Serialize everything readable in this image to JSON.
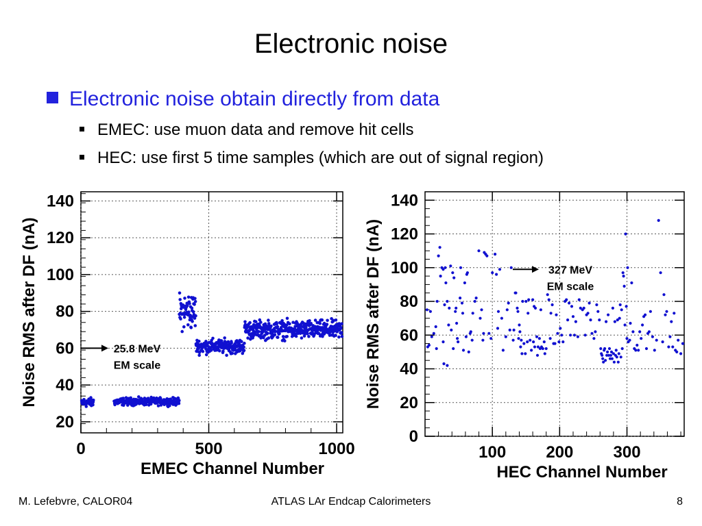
{
  "slide": {
    "title": "Electronic noise",
    "bullet_main": "Electronic noise obtain directly from data",
    "sub_bullets": [
      "EMEC: use muon data and remove hit cells",
      "HEC: use first 5 time samples (which are out of signal region)"
    ]
  },
  "footer": {
    "left": "M. Lefebvre, CALOR04",
    "center": "ATLAS LAr Endcap Calorimeters",
    "page": "8"
  },
  "colors": {
    "accent": "#2222dd",
    "marker": "#1010d0"
  },
  "chart_data": [
    {
      "type": "scatter",
      "xlabel": "EMEC Channel Number",
      "ylabel": "Noise RMS after DF (nA)",
      "xlim": [
        0,
        1024
      ],
      "ylim": [
        14,
        145
      ],
      "xticks": [
        0,
        500,
        1000
      ],
      "yticks": [
        20,
        40,
        60,
        80,
        100,
        120,
        140
      ],
      "grid": true,
      "annotation": {
        "line1": "25.8 MeV",
        "line2": "EM scale",
        "at_y": 60
      },
      "series": [
        {
          "x_range": [
            0,
            50
          ],
          "y_mean": 30.5,
          "y_spread": 2.2
        },
        {
          "x_range": [
            130,
            385
          ],
          "y_mean": 31,
          "y_spread": 1.8
        },
        {
          "x_range": [
            385,
            450
          ],
          "y_mean": 80,
          "y_spread": 9
        },
        {
          "x_range": [
            450,
            640
          ],
          "y_mean": 61,
          "y_spread": 3.5
        },
        {
          "x_range": [
            640,
            1024
          ],
          "y_mean": 70,
          "y_spread": 4.5
        }
      ]
    },
    {
      "type": "scatter",
      "xlabel": "HEC Channel Number",
      "ylabel": "Noise RMS after DF (nA)",
      "xlim": [
        0,
        385
      ],
      "ylim": [
        0,
        145
      ],
      "xticks": [
        100,
        200,
        300
      ],
      "yticks": [
        0,
        20,
        40,
        60,
        80,
        100,
        120,
        140
      ],
      "grid": true,
      "annotation": {
        "line1": "327 MeV",
        "line2": "EM scale",
        "at_y": 99
      },
      "points": [
        [
          3,
          75
        ],
        [
          4,
          53
        ],
        [
          6,
          54
        ],
        [
          8,
          74
        ],
        [
          10,
          59
        ],
        [
          13,
          61
        ],
        [
          16,
          65
        ],
        [
          17,
          52
        ],
        [
          18,
          80
        ],
        [
          20,
          107
        ],
        [
          22,
          112
        ],
        [
          23,
          95
        ],
        [
          25,
          100
        ],
        [
          27,
          99
        ],
        [
          27,
          56
        ],
        [
          28,
          43
        ],
        [
          29,
          78
        ],
        [
          30,
          100
        ],
        [
          31,
          91
        ],
        [
          33,
          80
        ],
        [
          33,
          42
        ],
        [
          35,
          66
        ],
        [
          36,
          76
        ],
        [
          38,
          101
        ],
        [
          39,
          63
        ],
        [
          41,
          97
        ],
        [
          42,
          52
        ],
        [
          43,
          94
        ],
        [
          45,
          74
        ],
        [
          46,
          76
        ],
        [
          47,
          67
        ],
        [
          48,
          58
        ],
        [
          49,
          56
        ],
        [
          52,
          82
        ],
        [
          53,
          100
        ],
        [
          55,
          79
        ],
        [
          56,
          73
        ],
        [
          57,
          51
        ],
        [
          59,
          91
        ],
        [
          61,
          59
        ],
        [
          62,
          96
        ],
        [
          63,
          97
        ],
        [
          65,
          50
        ],
        [
          67,
          61
        ],
        [
          68,
          62
        ],
        [
          70,
          57
        ],
        [
          71,
          73
        ],
        [
          74,
          80
        ],
        [
          76,
          82
        ],
        [
          80,
          110
        ],
        [
          82,
          70
        ],
        [
          84,
          75
        ],
        [
          86,
          57
        ],
        [
          87,
          61
        ],
        [
          88,
          109
        ],
        [
          90,
          108
        ],
        [
          92,
          107
        ],
        [
          95,
          61
        ],
        [
          98,
          58
        ],
        [
          100,
          97
        ],
        [
          104,
          108
        ],
        [
          106,
          96
        ],
        [
          108,
          64
        ],
        [
          109,
          74
        ],
        [
          111,
          99
        ],
        [
          114,
          70
        ],
        [
          116,
          51
        ],
        [
          120,
          59
        ],
        [
          122,
          75
        ],
        [
          124,
          79
        ],
        [
          126,
          63
        ],
        [
          128,
          100
        ],
        [
          131,
          57
        ],
        [
          132,
          63
        ],
        [
          134,
          85
        ],
        [
          135,
          85
        ],
        [
          137,
          76
        ],
        [
          138,
          74
        ],
        [
          139,
          58
        ],
        [
          140,
          66
        ],
        [
          141,
          62
        ],
        [
          142,
          53
        ],
        [
          143,
          57
        ],
        [
          144,
          49
        ],
        [
          145,
          80
        ],
        [
          147,
          55
        ],
        [
          149,
          49
        ],
        [
          150,
          80
        ],
        [
          152,
          56
        ],
        [
          153,
          73
        ],
        [
          154,
          81
        ],
        [
          156,
          57
        ],
        [
          158,
          51
        ],
        [
          160,
          81
        ],
        [
          161,
          56
        ],
        [
          162,
          77
        ],
        [
          163,
          53
        ],
        [
          164,
          76
        ],
        [
          166,
          59
        ],
        [
          167,
          48
        ],
        [
          168,
          53
        ],
        [
          170,
          58
        ],
        [
          171,
          52
        ],
        [
          172,
          75
        ],
        [
          173,
          53
        ],
        [
          175,
          52
        ],
        [
          177,
          56
        ],
        [
          178,
          49
        ],
        [
          180,
          52
        ],
        [
          182,
          84
        ],
        [
          184,
          81
        ],
        [
          186,
          58
        ],
        [
          187,
          73
        ],
        [
          189,
          78
        ],
        [
          191,
          55
        ],
        [
          193,
          55
        ],
        [
          195,
          72
        ],
        [
          197,
          61
        ],
        [
          199,
          56
        ],
        [
          201,
          64
        ],
        [
          203,
          60
        ],
        [
          205,
          56
        ],
        [
          208,
          80
        ],
        [
          210,
          81
        ],
        [
          212,
          69
        ],
        [
          214,
          79
        ],
        [
          216,
          60
        ],
        [
          218,
          77
        ],
        [
          220,
          71
        ],
        [
          222,
          60
        ],
        [
          224,
          68
        ],
        [
          227,
          59
        ],
        [
          229,
          81
        ],
        [
          231,
          76
        ],
        [
          234,
          75
        ],
        [
          236,
          76
        ],
        [
          238,
          60
        ],
        [
          240,
          72
        ],
        [
          242,
          73
        ],
        [
          244,
          79
        ],
        [
          246,
          69
        ],
        [
          248,
          61
        ],
        [
          251,
          58
        ],
        [
          253,
          62
        ],
        [
          255,
          78
        ],
        [
          257,
          74
        ],
        [
          259,
          69
        ],
        [
          261,
          52
        ],
        [
          262,
          49
        ],
        [
          263,
          48
        ],
        [
          264,
          46
        ],
        [
          265,
          44
        ],
        [
          266,
          51
        ],
        [
          267,
          52
        ],
        [
          268,
          45
        ],
        [
          269,
          68
        ],
        [
          270,
          48
        ],
        [
          271,
          50
        ],
        [
          272,
          72
        ],
        [
          273,
          48
        ],
        [
          274,
          52
        ],
        [
          275,
          46
        ],
        [
          276,
          48
        ],
        [
          277,
          50
        ],
        [
          278,
          46
        ],
        [
          279,
          76
        ],
        [
          280,
          49
        ],
        [
          281,
          44
        ],
        [
          282,
          68
        ],
        [
          283,
          48
        ],
        [
          284,
          51
        ],
        [
          285,
          47
        ],
        [
          286,
          69
        ],
        [
          287,
          44
        ],
        [
          288,
          49
        ],
        [
          289,
          70
        ],
        [
          290,
          78
        ],
        [
          291,
          47
        ],
        [
          292,
          75
        ],
        [
          293,
          52
        ],
        [
          294,
          97
        ],
        [
          295,
          95
        ],
        [
          296,
          89
        ],
        [
          297,
          66
        ],
        [
          298,
          120
        ],
        [
          299,
          77
        ],
        [
          300,
          58
        ],
        [
          301,
          100
        ],
        [
          302,
          56
        ],
        [
          304,
          57
        ],
        [
          305,
          67
        ],
        [
          307,
          91
        ],
        [
          309,
          62
        ],
        [
          311,
          52
        ],
        [
          313,
          51
        ],
        [
          315,
          54
        ],
        [
          317,
          51
        ],
        [
          319,
          62
        ],
        [
          321,
          58
        ],
        [
          323,
          66
        ],
        [
          325,
          71
        ],
        [
          327,
          72
        ],
        [
          329,
          52
        ],
        [
          331,
          61
        ],
        [
          333,
          62
        ],
        [
          335,
          74
        ],
        [
          338,
          59
        ],
        [
          341,
          51
        ],
        [
          344,
          57
        ],
        [
          347,
          128
        ],
        [
          350,
          97
        ],
        [
          353,
          56
        ],
        [
          355,
          84
        ],
        [
          357,
          72
        ],
        [
          359,
          74
        ],
        [
          362,
          53
        ],
        [
          364,
          59
        ],
        [
          366,
          68
        ],
        [
          368,
          53
        ],
        [
          370,
          73
        ],
        [
          372,
          51
        ],
        [
          374,
          50
        ],
        [
          376,
          57
        ],
        [
          380,
          49
        ],
        [
          383,
          55
        ]
      ]
    }
  ]
}
